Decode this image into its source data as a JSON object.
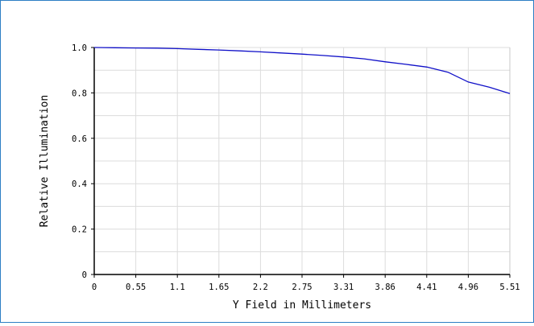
{
  "chart_data": {
    "type": "line",
    "xlabel": "Y Field in Millimeters",
    "ylabel": "Relative Illumination",
    "xlim": [
      0,
      5.51
    ],
    "ylim": [
      0,
      1.0
    ],
    "x_ticks": [
      "0",
      "0.55",
      "1.1",
      "1.65",
      "2.2",
      "2.75",
      "3.31",
      "3.86",
      "4.41",
      "4.96",
      "5.51"
    ],
    "y_ticks": [
      "0",
      "0.2",
      "0.4",
      "0.6",
      "0.8",
      "1.0"
    ],
    "grid": true,
    "line_color": "#1010c8",
    "series": [
      {
        "x": [
          0,
          0.275,
          0.55,
          0.83,
          1.1,
          1.38,
          1.65,
          1.93,
          2.2,
          2.48,
          2.75,
          3.03,
          3.31,
          3.58,
          3.86,
          4.13,
          4.41,
          4.69,
          4.96,
          5.24,
          5.51
        ],
        "y": [
          1.0,
          0.999,
          0.998,
          0.997,
          0.995,
          0.992,
          0.989,
          0.985,
          0.981,
          0.976,
          0.971,
          0.965,
          0.958,
          0.95,
          0.937,
          0.926,
          0.914,
          0.891,
          0.848,
          0.825,
          0.797
        ]
      }
    ]
  }
}
